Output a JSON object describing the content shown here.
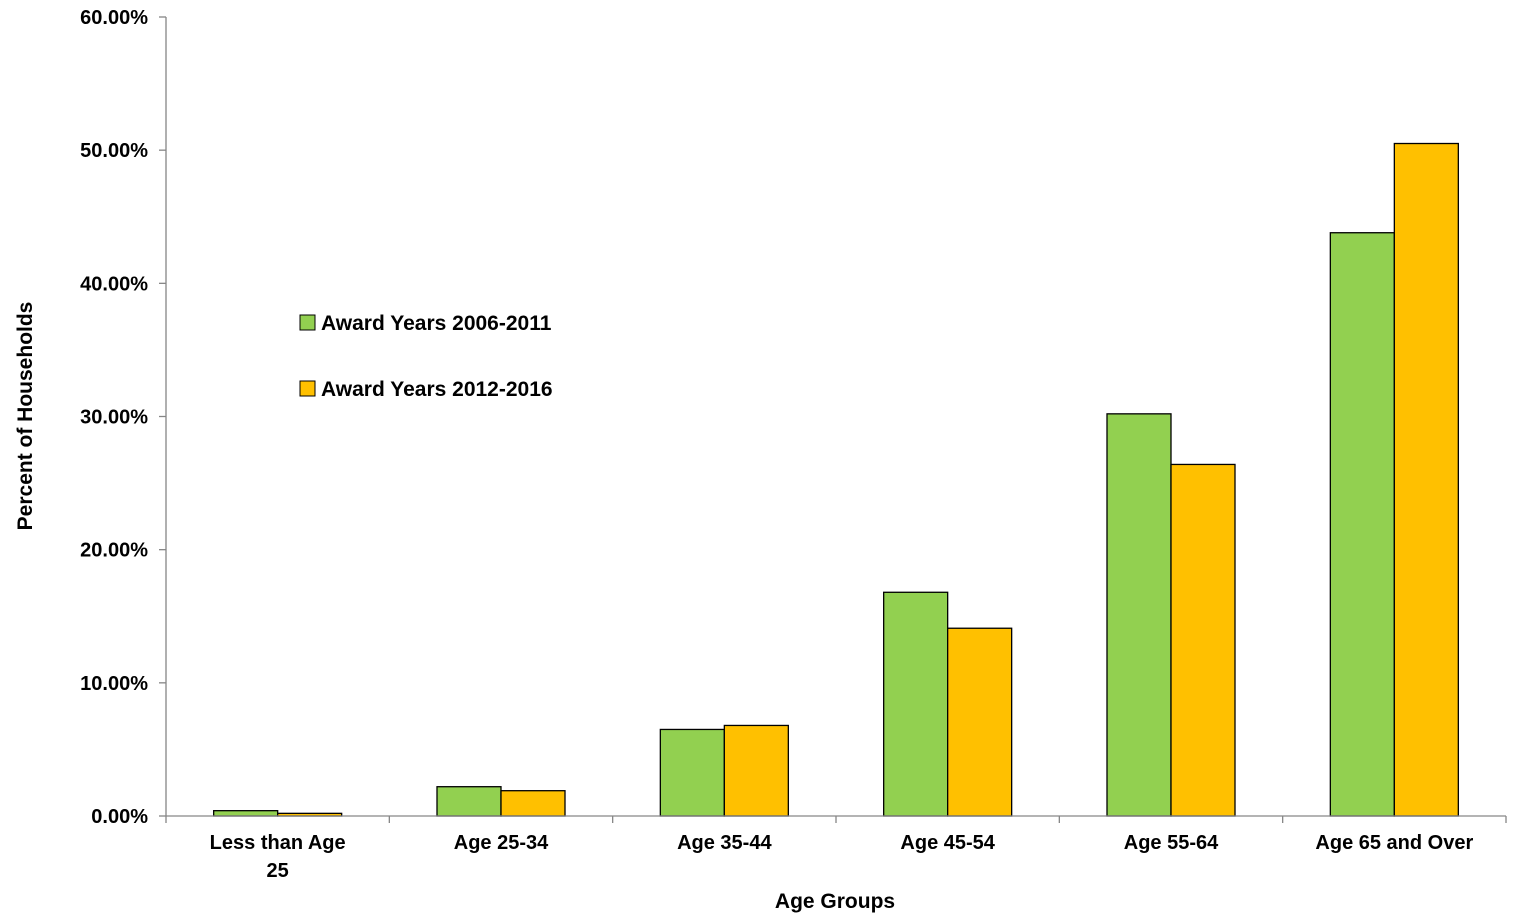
{
  "chart_data": {
    "type": "bar",
    "title": "",
    "xlabel": "Age Groups",
    "ylabel": "Percent of Households",
    "ylim": [
      0,
      60
    ],
    "y_ticks": [
      "0.00%",
      "10.00%",
      "20.00%",
      "30.00%",
      "40.00%",
      "50.00%",
      "60.00%"
    ],
    "grid": false,
    "legend_position": "center-left",
    "categories": [
      [
        "Less than Age",
        "25"
      ],
      [
        "Age 25-34"
      ],
      [
        "Age 35-44"
      ],
      [
        "Age 45-54"
      ],
      [
        "Age 55-64"
      ],
      [
        "Age 65 and Over"
      ]
    ],
    "series": [
      {
        "name": "Award Years 2006-2011",
        "color": "#92D050",
        "values": [
          0.4,
          2.2,
          6.5,
          16.8,
          30.2,
          43.8
        ]
      },
      {
        "name": "Award Years 2012-2016",
        "color": "#FFC000",
        "values": [
          0.2,
          1.9,
          6.8,
          14.1,
          26.4,
          50.5
        ]
      }
    ]
  }
}
